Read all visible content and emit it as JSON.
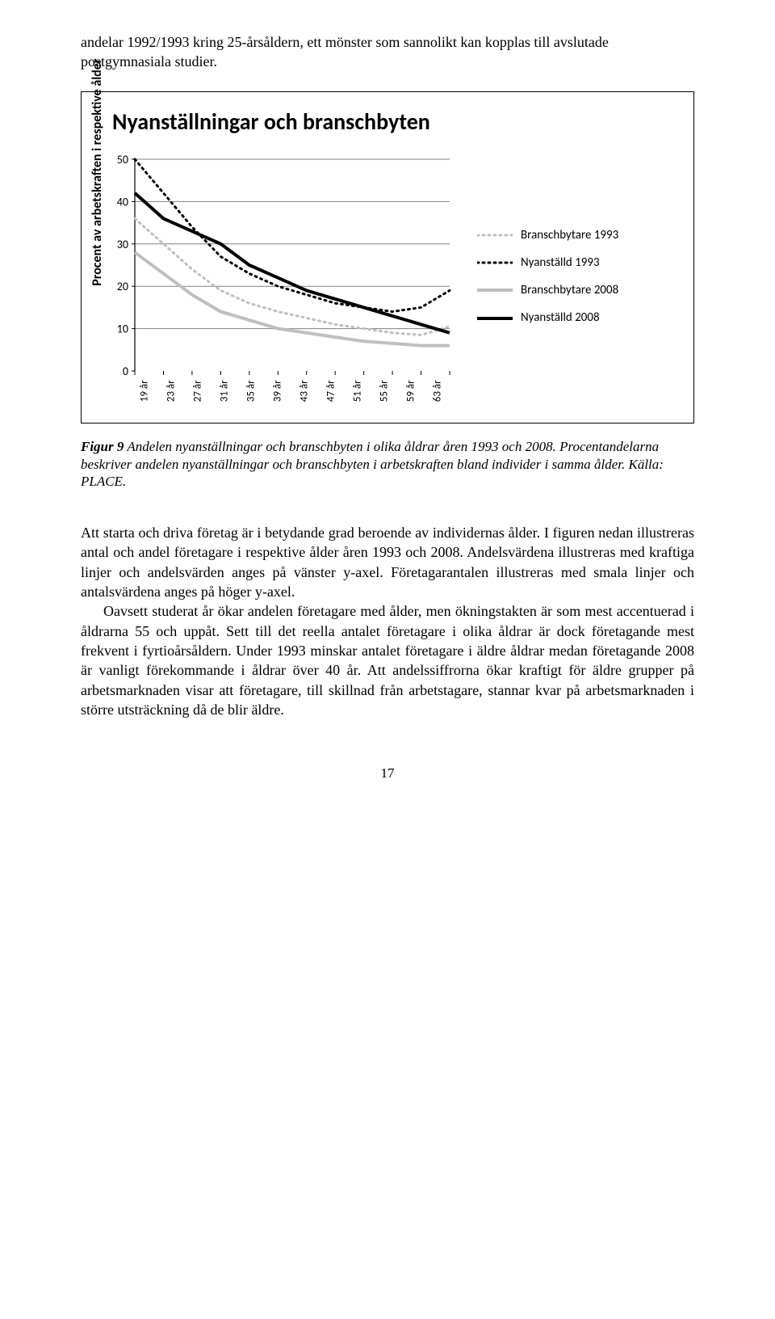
{
  "intro": "andelar 1992/1993 kring 25-årsåldern, ett mönster som sannolikt kan kopplas till avslutade postgymnasiala studier.",
  "chart": {
    "type": "line",
    "title": "Nyanställningar och branschbyten",
    "ylabel": "Procent av arbetskraften i respektive ålder",
    "ylim": [
      0,
      50
    ],
    "yticks": [
      0,
      10,
      20,
      30,
      40,
      50
    ],
    "xticks": [
      "19 år",
      "23 år",
      "27 år",
      "31 år",
      "35 år",
      "39 år",
      "43 år",
      "47 år",
      "51 år",
      "55 år",
      "59 år",
      "63 år"
    ],
    "x_count": 12,
    "grid_color": "#808080",
    "axis_color": "#000000",
    "background_color": "#ffffff",
    "legend": [
      {
        "label": "Branschbytare 1993",
        "color": "#bfbfbf",
        "style": "dotted",
        "width": 3
      },
      {
        "label": "Nyanställd 1993",
        "color": "#000000",
        "style": "dotted",
        "width": 3
      },
      {
        "label": "Branschbytare 2008",
        "color": "#bfbfbf",
        "style": "solid",
        "width": 4
      },
      {
        "label": "Nyanställd 2008",
        "color": "#000000",
        "style": "solid",
        "width": 4
      }
    ],
    "series": {
      "branschbytare_1993": [
        36,
        30,
        24,
        19,
        16,
        14,
        12.5,
        11,
        10,
        9,
        8.5,
        10.5
      ],
      "nyanstalld_1993": [
        50,
        42,
        34,
        27,
        23,
        20,
        18,
        16,
        15,
        14,
        15,
        19
      ],
      "branschbytare_2008": [
        28,
        23,
        18,
        14,
        12,
        10,
        9,
        8,
        7,
        6.5,
        6,
        6
      ],
      "nyanstalld_2008": [
        42,
        36,
        33,
        30,
        25,
        22,
        19,
        17,
        15,
        13,
        11,
        9
      ]
    }
  },
  "caption_lead": "Figur 9",
  "caption_rest": " Andelen nyanställningar och branschbyten i olika åldrar åren 1993 och 2008. Procentandelarna beskriver andelen nyanställningar och branschbyten i arbetskraften bland individer i samma ålder. Källa: PLACE.",
  "para1": "Att starta och driva företag är i betydande grad beroende av individernas ålder. I figuren nedan illustreras antal och andel företagare i respektive ålder åren 1993 och 2008. Andelsvärdena illustreras med kraftiga linjer och andelsvärden anges på vänster y-axel. Företagarantalen illustreras med smala linjer och antalsvärdena anges på höger y-axel.",
  "para2": "Oavsett studerat år ökar andelen företagare med ålder, men ökningstakten är som mest accentuerad i åldrarna 55 och uppåt. Sett till det reella antalet företagare i olika åldrar är dock företagande mest frekvent i fyrtioårsåldern. Under 1993 minskar antalet företagare i äldre åldrar medan företagande 2008 är vanligt förekommande i åldrar över 40 år. Att andelssiffrorna ökar kraftigt för äldre grupper på arbetsmarknaden visar att företagare, till skillnad från arbetstagare, stannar kvar på arbetsmarknaden i större utsträckning då de blir äldre.",
  "page_number": "17"
}
